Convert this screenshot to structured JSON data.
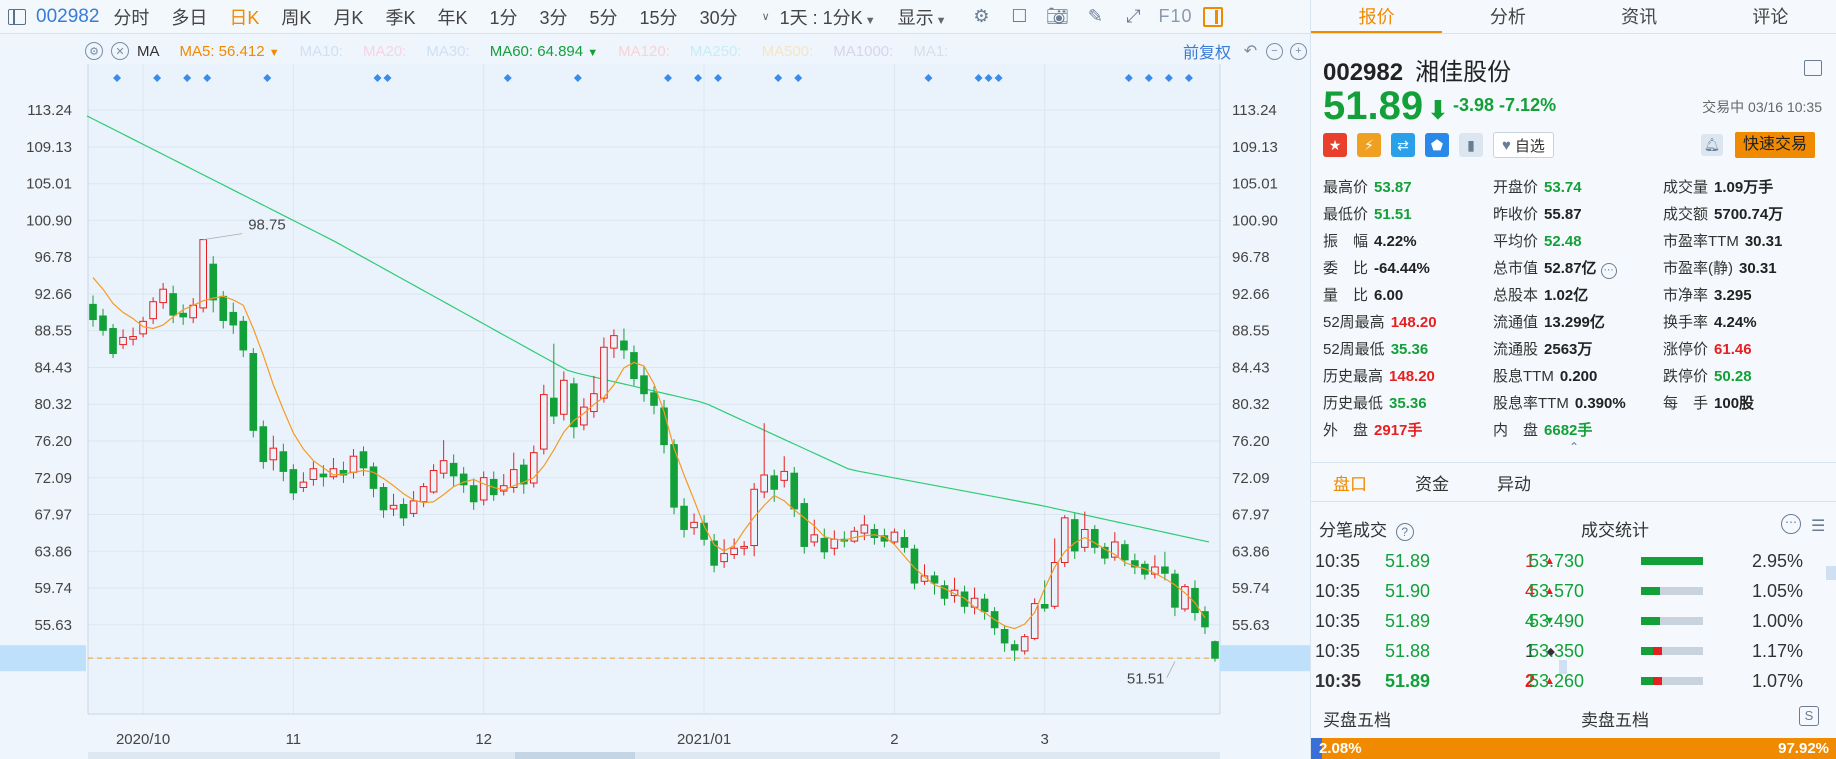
{
  "toolbar": {
    "code": "002982",
    "periods": [
      "分时",
      "多日",
      "日K",
      "周K",
      "月K",
      "季K",
      "年K",
      "1分",
      "3分",
      "5分",
      "15分",
      "30分"
    ],
    "active_period": "日K",
    "range_label": "1天 : 1分K",
    "display_label": "显示",
    "f10_label": "F10"
  },
  "indicator_bar": {
    "ma_label": "MA",
    "ma5": "MA5: 56.412",
    "ma10": "MA10:",
    "ma20": "MA20:",
    "ma30": "MA30:",
    "ma60": "MA60: 64.894",
    "ma120": "MA120:",
    "ma250": "MA250:",
    "ma500": "MA500:",
    "ma1000": "MA1000:",
    "ma1": "MA1:",
    "adjust_label": "前复权"
  },
  "chart_data": {
    "type": "candlestick",
    "y_ticks": [
      "113.24",
      "109.13",
      "105.01",
      "100.90",
      "96.78",
      "92.66",
      "88.55",
      "84.43",
      "80.32",
      "76.20",
      "72.09",
      "67.97",
      "63.86",
      "59.74",
      "55.63",
      "51.89"
    ],
    "ylim": [
      49.0,
      115.5
    ],
    "x_labels": [
      {
        "label": "2020/10",
        "idx": 5
      },
      {
        "label": "11",
        "idx": 20
      },
      {
        "label": "12",
        "idx": 39
      },
      {
        "label": "2021/01",
        "idx": 61
      },
      {
        "label": "2",
        "idx": 80
      },
      {
        "label": "3",
        "idx": 95
      }
    ],
    "current_price": "51.89",
    "annotations": [
      {
        "text": "98.75",
        "idx": 11,
        "value": 98.75
      },
      {
        "text": "51.51",
        "idx": 108,
        "value": 51.51
      }
    ],
    "candles": [
      [
        91.5,
        89.8,
        92.5,
        89.0
      ],
      [
        90.2,
        88.6,
        91.0,
        88.0
      ],
      [
        88.8,
        86.0,
        89.3,
        85.5
      ],
      [
        87.0,
        87.8,
        88.7,
        86.5
      ],
      [
        87.6,
        87.9,
        88.9,
        86.9
      ],
      [
        88.2,
        89.6,
        90.1,
        87.8
      ],
      [
        89.9,
        91.8,
        92.3,
        89.3
      ],
      [
        91.7,
        93.2,
        93.9,
        91.0
      ],
      [
        92.7,
        90.3,
        93.6,
        89.4
      ],
      [
        90.5,
        90.1,
        91.5,
        89.2
      ],
      [
        90.0,
        91.4,
        92.2,
        89.4
      ],
      [
        91.1,
        98.75,
        98.75,
        90.6
      ],
      [
        96.0,
        92.0,
        96.9,
        90.6
      ],
      [
        92.4,
        89.7,
        93.0,
        88.8
      ],
      [
        90.6,
        89.2,
        91.7,
        88.2
      ],
      [
        89.6,
        86.4,
        90.2,
        85.6
      ],
      [
        86.0,
        77.4,
        86.6,
        76.6
      ],
      [
        77.8,
        73.9,
        78.5,
        73.1
      ],
      [
        74.1,
        75.4,
        76.8,
        72.9
      ],
      [
        75.0,
        72.8,
        75.9,
        71.7
      ],
      [
        73.0,
        70.4,
        73.6,
        69.6
      ],
      [
        71.0,
        71.6,
        72.7,
        70.5
      ],
      [
        71.9,
        73.1,
        73.9,
        71.2
      ],
      [
        72.5,
        72.2,
        73.5,
        71.1
      ],
      [
        72.2,
        73.1,
        74.3,
        71.9
      ],
      [
        72.9,
        72.4,
        73.9,
        71.5
      ],
      [
        72.7,
        74.5,
        75.3,
        72.0
      ],
      [
        75.0,
        73.2,
        75.6,
        72.3
      ],
      [
        73.3,
        70.9,
        73.8,
        69.9
      ],
      [
        71.0,
        68.5,
        71.5,
        67.6
      ],
      [
        68.6,
        69.0,
        70.3,
        67.8
      ],
      [
        69.1,
        67.6,
        69.8,
        66.7
      ],
      [
        68.1,
        69.5,
        70.6,
        67.7
      ],
      [
        69.4,
        71.1,
        71.5,
        68.8
      ],
      [
        70.5,
        72.9,
        73.6,
        70.3
      ],
      [
        72.6,
        74.0,
        76.3,
        72.0
      ],
      [
        73.7,
        72.3,
        74.7,
        71.1
      ],
      [
        72.5,
        71.3,
        73.3,
        70.4
      ],
      [
        71.2,
        69.4,
        72.0,
        68.5
      ],
      [
        69.6,
        72.1,
        72.8,
        69.0
      ],
      [
        71.9,
        70.2,
        72.8,
        69.5
      ],
      [
        70.6,
        71.2,
        72.5,
        70.1
      ],
      [
        71.0,
        73.0,
        74.9,
        70.4
      ],
      [
        73.5,
        71.4,
        74.2,
        70.3
      ],
      [
        71.5,
        74.9,
        75.7,
        71.0
      ],
      [
        75.3,
        81.4,
        82.5,
        74.7
      ],
      [
        81.0,
        79.0,
        87.1,
        78.1
      ],
      [
        79.2,
        83.0,
        84.0,
        78.5
      ],
      [
        82.6,
        77.8,
        83.3,
        76.5
      ],
      [
        78.0,
        80.0,
        81.0,
        77.4
      ],
      [
        79.5,
        81.5,
        83.5,
        78.8
      ],
      [
        81.0,
        86.7,
        87.8,
        80.5
      ],
      [
        86.6,
        88.0,
        88.7,
        85.5
      ],
      [
        87.4,
        86.4,
        88.8,
        85.4
      ],
      [
        86.1,
        83.2,
        86.9,
        82.4
      ],
      [
        83.5,
        81.5,
        84.6,
        80.6
      ],
      [
        81.6,
        80.2,
        82.3,
        79.2
      ],
      [
        79.9,
        75.8,
        80.8,
        74.8
      ],
      [
        75.8,
        68.8,
        76.4,
        68.0
      ],
      [
        68.9,
        66.3,
        69.8,
        65.4
      ],
      [
        66.5,
        67.1,
        68.1,
        65.7
      ],
      [
        67.0,
        65.2,
        67.9,
        64.5
      ],
      [
        65.0,
        62.3,
        65.8,
        61.5
      ],
      [
        62.7,
        63.6,
        65.2,
        62.0
      ],
      [
        63.5,
        64.2,
        65.3,
        63.0
      ],
      [
        64.2,
        64.4,
        65.0,
        63.4
      ],
      [
        64.5,
        70.8,
        71.5,
        63.3
      ],
      [
        70.5,
        72.4,
        78.2,
        69.8
      ],
      [
        72.3,
        70.8,
        73.0,
        69.4
      ],
      [
        71.8,
        72.8,
        74.5,
        71.0
      ],
      [
        72.6,
        68.6,
        73.3,
        67.7
      ],
      [
        69.2,
        64.4,
        69.8,
        63.6
      ],
      [
        64.9,
        65.7,
        67.4,
        64.4
      ],
      [
        65.3,
        63.8,
        66.4,
        63.0
      ],
      [
        64.2,
        65.2,
        66.2,
        63.4
      ],
      [
        65.2,
        65.0,
        66.1,
        64.3
      ],
      [
        65.0,
        66.1,
        66.6,
        64.8
      ],
      [
        65.9,
        66.8,
        67.9,
        65.1
      ],
      [
        66.3,
        65.4,
        66.9,
        64.6
      ],
      [
        65.6,
        65.0,
        66.4,
        64.3
      ],
      [
        64.9,
        66.0,
        66.4,
        64.6
      ],
      [
        65.4,
        64.3,
        66.3,
        63.7
      ],
      [
        64.1,
        60.3,
        64.6,
        59.6
      ],
      [
        60.5,
        61.1,
        62.4,
        60.1
      ],
      [
        61.1,
        60.3,
        61.6,
        59.0
      ],
      [
        60.0,
        58.6,
        60.6,
        57.8
      ],
      [
        58.9,
        59.5,
        60.9,
        58.1
      ],
      [
        59.3,
        57.7,
        60.0,
        56.9
      ],
      [
        57.6,
        58.6,
        59.8,
        56.8
      ],
      [
        58.5,
        57.1,
        59.1,
        56.2
      ],
      [
        57.1,
        55.3,
        57.6,
        54.5
      ],
      [
        55.1,
        53.6,
        55.6,
        52.6
      ],
      [
        53.4,
        52.8,
        53.9,
        51.6
      ],
      [
        52.7,
        54.3,
        54.6,
        52.3
      ],
      [
        54.1,
        58.0,
        58.6,
        53.9
      ],
      [
        57.9,
        57.5,
        60.6,
        57.1
      ],
      [
        57.7,
        62.6,
        65.3,
        57.4
      ],
      [
        62.6,
        67.6,
        67.9,
        62.1
      ],
      [
        67.4,
        63.9,
        68.1,
        63.0
      ],
      [
        64.3,
        66.3,
        68.3,
        63.8
      ],
      [
        66.3,
        64.3,
        66.8,
        63.6
      ],
      [
        64.3,
        63.1,
        64.8,
        62.4
      ],
      [
        63.2,
        64.9,
        66.0,
        62.8
      ],
      [
        64.6,
        62.9,
        65.1,
        62.2
      ],
      [
        62.8,
        62.1,
        63.6,
        61.3
      ],
      [
        62.4,
        61.3,
        62.8,
        60.7
      ],
      [
        61.3,
        62.1,
        63.4,
        60.8
      ],
      [
        62.1,
        61.4,
        63.8,
        60.6
      ],
      [
        61.3,
        57.6,
        61.8,
        56.6
      ],
      [
        57.4,
        59.9,
        60.2,
        57.1
      ],
      [
        59.7,
        57.0,
        60.6,
        56.1
      ],
      [
        57.1,
        55.4,
        57.7,
        54.6
      ],
      [
        53.74,
        51.89,
        53.87,
        51.51
      ]
    ],
    "ma5_values": [
      94.5,
      93.2,
      91.6,
      90.6,
      89.9,
      89.0,
      88.8,
      89.2,
      90.1,
      90.9,
      91.4,
      91.9,
      92.2,
      92.4,
      92.0,
      91.4,
      88.8,
      85.8,
      82.5,
      79.7,
      77.1,
      75.3,
      74.0,
      73.2,
      72.4,
      72.5,
      72.7,
      72.9,
      72.7,
      72.0,
      71.2,
      70.3,
      69.6,
      69.3,
      69.4,
      70.2,
      71.1,
      71.6,
      71.9,
      71.4,
      71.0,
      70.7,
      71.2,
      71.6,
      72.1,
      73.4,
      75.2,
      77.2,
      78.5,
      79.3,
      80.3,
      81.1,
      82.5,
      84.4,
      85.0,
      84.6,
      82.6,
      79.5,
      75.4,
      72.4,
      69.6,
      66.7,
      64.6,
      63.9,
      64.5,
      66.2,
      67.7,
      69.0,
      70.1,
      69.5,
      68.5,
      67.6,
      66.7,
      65.5,
      65.2,
      65.1,
      65.4,
      65.6,
      65.7,
      65.5,
      64.6,
      63.3,
      62.0,
      61.0,
      60.1,
      59.7,
      59.1,
      58.6,
      57.6,
      57.0,
      56.2,
      55.5,
      55.2,
      55.7,
      57.0,
      59.7,
      62.1,
      63.8,
      64.8,
      65.4,
      64.8,
      64.1,
      63.5,
      62.6,
      62.2,
      61.9,
      61.4,
      60.8,
      60.1,
      59.2,
      58.1,
      56.412
    ]
  },
  "quote": {
    "tabs": [
      "报价",
      "分析",
      "资讯",
      "评论"
    ],
    "code": "002982",
    "name": "湘佳股份",
    "price": "51.89",
    "arrow": "⬇",
    "change": "-3.98",
    "change_pct": "-7.12%",
    "trade_time": "交易中 03/16 10:35",
    "watchlist_label": "自选",
    "quick_trade_label": "快速交易",
    "fields": [
      [
        {
          "l": "最高价",
          "v": "53.87",
          "c": "g"
        },
        {
          "l": "开盘价",
          "v": "53.74",
          "c": "g"
        },
        {
          "l": "成交量",
          "v": "1.09万手",
          "c": "k"
        }
      ],
      [
        {
          "l": "最低价",
          "v": "51.51",
          "c": "g"
        },
        {
          "l": "昨收价",
          "v": "55.87",
          "c": "k"
        },
        {
          "l": "成交额",
          "v": "5700.74万",
          "c": "k"
        }
      ],
      [
        {
          "l": "振　幅",
          "v": "4.22%",
          "c": "k"
        },
        {
          "l": "平均价",
          "v": "52.48",
          "c": "g"
        },
        {
          "l": "市盈率TTM",
          "v": "30.31",
          "c": "k"
        }
      ],
      [
        {
          "l": "委　比",
          "v": "-64.44%",
          "c": "k"
        },
        {
          "l": "总市值",
          "v": "52.87亿",
          "c": "k"
        },
        {
          "l": "市盈率(静)",
          "v": "30.31",
          "c": "k"
        }
      ],
      [
        {
          "l": "量　比",
          "v": "6.00",
          "c": "k"
        },
        {
          "l": "总股本",
          "v": "1.02亿",
          "c": "k"
        },
        {
          "l": "市净率",
          "v": "3.295",
          "c": "k"
        }
      ],
      [
        {
          "l": "52周最高",
          "v": "148.20",
          "c": "r"
        },
        {
          "l": "流通值",
          "v": "13.299亿",
          "c": "k"
        },
        {
          "l": "换手率",
          "v": "4.24%",
          "c": "k"
        }
      ],
      [
        {
          "l": "52周最低",
          "v": "35.36",
          "c": "g"
        },
        {
          "l": "流通股",
          "v": "2563万",
          "c": "k"
        },
        {
          "l": "涨停价",
          "v": "61.46",
          "c": "r"
        }
      ],
      [
        {
          "l": "历史最高",
          "v": "148.20",
          "c": "r"
        },
        {
          "l": "股息TTM",
          "v": "0.200",
          "c": "k"
        },
        {
          "l": "跌停价",
          "v": "50.28",
          "c": "g"
        }
      ],
      [
        {
          "l": "历史最低",
          "v": "35.36",
          "c": "g"
        },
        {
          "l": "股息率TTM",
          "v": "0.390%",
          "c": "k"
        },
        {
          "l": "每　手",
          "v": "100股",
          "c": "k"
        }
      ],
      [
        {
          "l": "外　盘",
          "v": "2917手",
          "c": "r"
        },
        {
          "l": "内　盘",
          "v": "6682手",
          "c": "g"
        },
        {
          "l": "",
          "v": "",
          "c": "k"
        }
      ]
    ]
  },
  "subtabs": [
    "盘口",
    "资金",
    "异动"
  ],
  "trades": {
    "title": "分笔成交",
    "rows": [
      {
        "t": "10:35",
        "p": "51.89",
        "v": "1",
        "d": "▲",
        "dc": "#e62020",
        "vc": "#e62020"
      },
      {
        "t": "10:35",
        "p": "51.90",
        "v": "4",
        "d": "▲",
        "dc": "#e62020",
        "vc": "#e62020"
      },
      {
        "t": "10:35",
        "p": "51.89",
        "v": "4",
        "d": "▼",
        "dc": "#13a038",
        "vc": "#13a038"
      },
      {
        "t": "10:35",
        "p": "51.88",
        "v": "1",
        "d": "◆",
        "dc": "#333",
        "vc": "#333"
      },
      {
        "t": "10:35",
        "p": "51.89",
        "v": "2",
        "d": "▲",
        "dc": "#e62020",
        "vc": "#e62020"
      }
    ]
  },
  "stats": {
    "title": "成交统计",
    "rows": [
      {
        "p": "53.730",
        "pct": "2.95%",
        "g": 1.0,
        "r": 0.0
      },
      {
        "p": "53.570",
        "pct": "1.05%",
        "g": 0.3,
        "r": 0.0
      },
      {
        "p": "53.490",
        "pct": "1.00%",
        "g": 0.3,
        "r": 0.0
      },
      {
        "p": "53.350",
        "pct": "1.17%",
        "g": 0.2,
        "r": 0.15
      },
      {
        "p": "53.260",
        "pct": "1.07%",
        "g": 0.2,
        "r": 0.15
      }
    ]
  },
  "orderbook": {
    "buy_label": "买盘五档",
    "sell_label": "卖盘五档",
    "buy_pct": "2.08%",
    "sell_pct": "97.92%",
    "buy_ratio": 0.0208
  }
}
